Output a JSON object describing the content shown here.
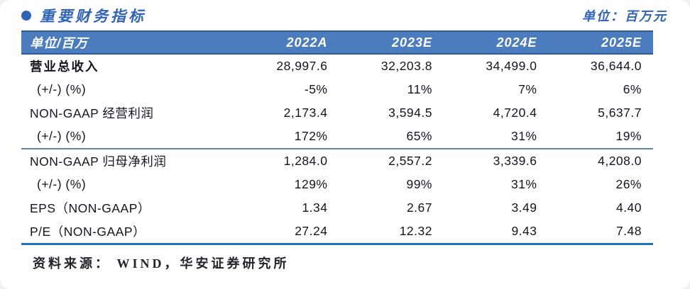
{
  "header": {
    "title": "重要财务指标",
    "unit_note": "单位：百万元",
    "bullet_icon": "●"
  },
  "table": {
    "columns": [
      "单位/百万",
      "2022A",
      "2023E",
      "2024E",
      "2025E"
    ],
    "rows": [
      {
        "label": "营业总收入",
        "values": [
          "28,997.6",
          "32,203.8",
          "34,499.0",
          "36,644.0"
        ]
      },
      {
        "label": "(+/-) (%)",
        "values": [
          "-5%",
          "11%",
          "7%",
          "6%"
        ]
      },
      {
        "label": "NON-GAAP 经营利润",
        "values": [
          "2,173.4",
          "3,594.5",
          "4,720.4",
          "5,637.7"
        ]
      },
      {
        "label": "(+/-) (%)",
        "values": [
          "172%",
          "65%",
          "31%",
          "19%"
        ]
      },
      {
        "label": "NON-GAAP 归母净利润",
        "values": [
          "1,284.0",
          "2,557.2",
          "3,339.6",
          "4,208.0"
        ]
      },
      {
        "label": "(+/-) (%)",
        "values": [
          "129%",
          "99%",
          "31%",
          "26%"
        ]
      },
      {
        "label": "EPS（NON-GAAP）",
        "values": [
          "1.34",
          "2.67",
          "3.49",
          "4.40"
        ]
      },
      {
        "label": "P/E（NON-GAAP）",
        "values": [
          "27.24",
          "12.32",
          "9.43",
          "7.48"
        ]
      }
    ]
  },
  "footer": {
    "source": "资料来源：  WIND，华安证券研究所"
  },
  "colors": {
    "accent_blue": "#2e63b8",
    "header_band": "#4a7cbe",
    "header_band_border": "#2d5da0",
    "mid_rule": "#5e83ab",
    "bottom_rule": "#1f6fc9",
    "body_text": "#15151f"
  }
}
